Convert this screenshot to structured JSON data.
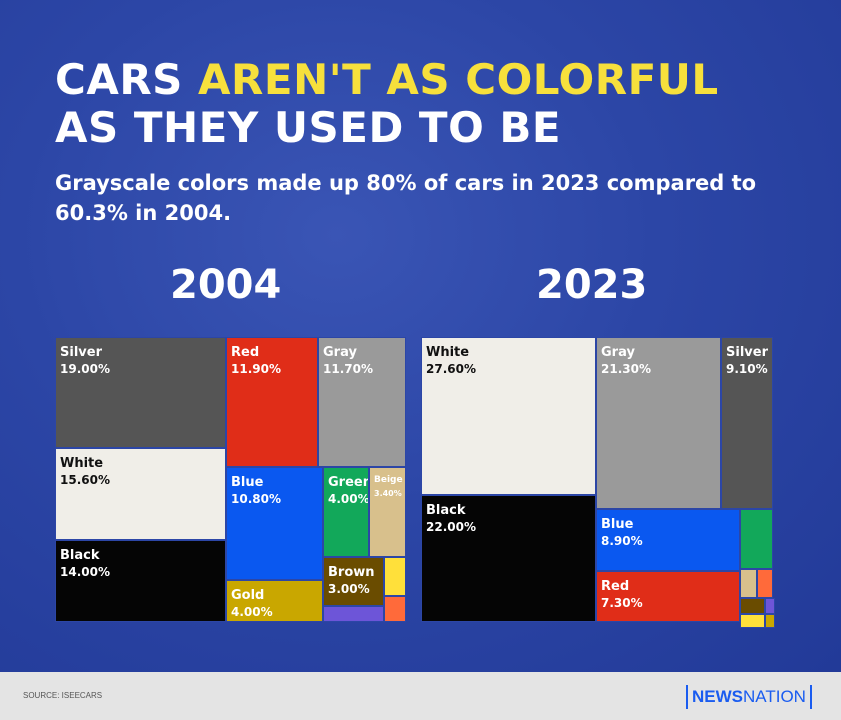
{
  "title": {
    "line1_plain": "CARS ",
    "line1_highlight": "AREN'T AS COLORFUL",
    "line2": "AS THEY USED TO BE"
  },
  "subtitle": "Grayscale colors made up 80% of cars in 2023 compared to 60.3% in 2004.",
  "colors": {
    "highlight": "#f7e03c",
    "background": "#2c46a6"
  },
  "chart_data": [
    {
      "type": "treemap",
      "title": "2004",
      "unit": "%",
      "cells": [
        {
          "label": "Silver",
          "value": "19.00%",
          "color": "#555555"
        },
        {
          "label": "White",
          "value": "15.60%",
          "color": "#f0eee8"
        },
        {
          "label": "Black",
          "value": "14.00%",
          "color": "#050505"
        },
        {
          "label": "Red",
          "value": "11.90%",
          "color": "#e02d18"
        },
        {
          "label": "Gray",
          "value": "11.70%",
          "color": "#9a9a9a"
        },
        {
          "label": "Blue",
          "value": "10.80%",
          "color": "#0a58f0"
        },
        {
          "label": "Gold",
          "value": "4.00%",
          "color": "#c9a700"
        },
        {
          "label": "Green",
          "value": "4.00%",
          "color": "#12a85a"
        },
        {
          "label": "Beige",
          "value": "3.40%",
          "color": "#d8c08c"
        },
        {
          "label": "Brown",
          "value": "3.00%",
          "color": "#6a4c00"
        },
        {
          "label": "",
          "value": "",
          "color": "#6d55d8"
        },
        {
          "label": "",
          "value": "",
          "color": "#ffe03a"
        },
        {
          "label": "",
          "value": "",
          "color": "#ff6a3a"
        }
      ]
    },
    {
      "type": "treemap",
      "title": "2023",
      "unit": "%",
      "cells": [
        {
          "label": "White",
          "value": "27.60%",
          "color": "#f0eee8"
        },
        {
          "label": "Black",
          "value": "22.00%",
          "color": "#050505"
        },
        {
          "label": "Gray",
          "value": "21.30%",
          "color": "#9a9a9a"
        },
        {
          "label": "Silver",
          "value": "9.10%",
          "color": "#555555"
        },
        {
          "label": "Blue",
          "value": "8.90%",
          "color": "#0a58f0"
        },
        {
          "label": "Red",
          "value": "7.30%",
          "color": "#e02d18"
        },
        {
          "label": "",
          "value": "",
          "color": "#12a85a"
        },
        {
          "label": "",
          "value": "",
          "color": "#d8c08c"
        },
        {
          "label": "",
          "value": "",
          "color": "#ff6a3a"
        },
        {
          "label": "",
          "value": "",
          "color": "#6a4c00"
        },
        {
          "label": "",
          "value": "",
          "color": "#6d55d8"
        },
        {
          "label": "",
          "value": "",
          "color": "#ffe03a"
        },
        {
          "label": "",
          "value": "",
          "color": "#c9a700"
        }
      ]
    }
  ],
  "footer": {
    "source": "SOURCE: ISEECARS",
    "logo_bold": "NEWS",
    "logo_light": "NATION"
  }
}
